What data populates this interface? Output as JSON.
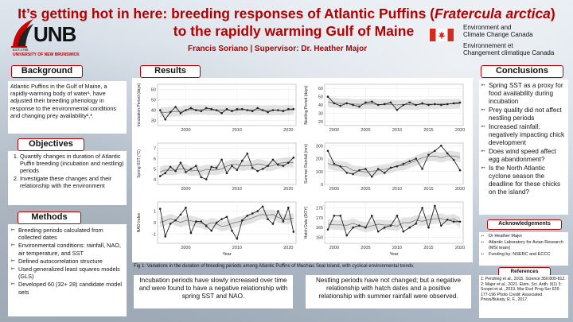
{
  "title": {
    "line1_pre": "It’s getting hot in here: breeding responses of Atlantic Puffins (",
    "line1_italic": "Fratercula arctica",
    "line1_post": ")",
    "line2": "to the rapidly warming Gulf of Maine"
  },
  "authors": "Francis Soriano   |   Supervisor: Dr. Heather Major",
  "logo": {
    "name": "UNB",
    "est": "EST.1785",
    "university": "UNIVERSITY OF NEW BRUNSWICK"
  },
  "eccc": {
    "en1": "Environment and",
    "en2": "Climate Change Canada",
    "fr1": "Environnement et",
    "fr2": "Changement climatique Canada"
  },
  "background": {
    "header": "Background",
    "text": "Atlantic Puffins in the Gulf of Maine, a rapidly-warming body of water¹, have adjusted their breeding phenology in response to the environmental conditions and changing prey availability²,³."
  },
  "objectives": {
    "header": "Objectives",
    "items": [
      "Quantify changes in duration of Atlantic Puffin breeding (incubation and nestling) periods",
      "Investigate these changes and their relationship with the environment"
    ]
  },
  "methods": {
    "header": "Methods",
    "items": [
      "Breeding periods calculated from collected dates",
      "Environmental conditions: rainfall, NAO, air temperature, and SST",
      "Defined autocorrelation structure",
      "Used generalized least squares models (GLS)",
      "Developed 60 (32+ 28) candidate model sets"
    ]
  },
  "results": {
    "header": "Results",
    "caption": "Fig 1: Variations in the duration of breeding periods among Atlantic Puffins of Machias Seal Island, with cyclical environmental trends.",
    "left_summary": "Incubation periods have slowly increased over time and were found to have a negative relationship with spring SST and NAO.",
    "right_summary": "Nestling periods have not changed; but a negative relationship with hatch dates and a positive relationship with summer rainfall were observed."
  },
  "conclusions": {
    "header": "Conclusions",
    "items": [
      "Spring SST as a proxy for food availability during incubation",
      "Prey quality did not affect nestling periods",
      "Increased rainfall: negatively impacting chick development",
      "Does wind speed affect egg abandonment?",
      "Is the North Atlantic cyclone season the deadline for these chicks on the island?"
    ]
  },
  "acknowledgements": {
    "header": "Acknowledgements",
    "items": [
      "Dr Heather Major",
      "Atlantic Laboratory for Avian Research (MSI team)",
      "Funding by: NSERC and ECCC"
    ]
  },
  "references": {
    "header": "References",
    "text": "1: Pershing et al., 2015. Science 350:809-812.  2: Major et al., 2021. Elem. Sci. Anth. 9(1) 3: Scopel et al., 2019. Mar Ecol Prog Ser 626: 177-196 Photo Credit: Associated Press/Bukaty, R. F., 2017."
  },
  "chart_data": [
    {
      "type": "line",
      "ylabel": "Incubation Period (days)",
      "xlabel": "",
      "x_ticks": [
        "2000",
        "2010",
        "2020"
      ],
      "y_ticks": [
        "30",
        "40",
        "50",
        "60"
      ],
      "ylim": [
        25,
        65
      ],
      "x": [
        1995,
        1996,
        1997,
        1998,
        1999,
        2000,
        2001,
        2002,
        2003,
        2004,
        2005,
        2006,
        2007,
        2008,
        2009,
        2010,
        2011,
        2012,
        2013,
        2014,
        2015,
        2016,
        2017,
        2018,
        2019,
        2020,
        2021
      ],
      "values": [
        40,
        31,
        38,
        43,
        37,
        40,
        42,
        40,
        39,
        42,
        41,
        40,
        37,
        41,
        39,
        41,
        41,
        40,
        39,
        42,
        40,
        38,
        40,
        40,
        39,
        41,
        41
      ]
    },
    {
      "type": "line",
      "ylabel": "Nestling Period (days)",
      "xlabel": "",
      "x_ticks": [
        "2000",
        "2005",
        "2010",
        "2015",
        "2020"
      ],
      "y_ticks": [
        "20",
        "30",
        "40",
        "50",
        "60"
      ],
      "ylim": [
        15,
        65
      ],
      "x": [
        1999,
        2000,
        2001,
        2002,
        2003,
        2004,
        2005,
        2006,
        2007,
        2008,
        2009,
        2010,
        2011,
        2012,
        2013,
        2014,
        2015,
        2016,
        2017,
        2018,
        2019,
        2020
      ],
      "values": [
        50,
        42,
        39,
        42,
        40,
        38,
        43,
        44,
        40,
        41,
        43,
        34,
        40,
        43,
        40,
        42,
        40,
        41,
        40,
        41,
        42,
        43
      ]
    },
    {
      "type": "line",
      "ylabel": "Spring SST (°C)",
      "xlabel": "",
      "x_ticks": [
        "2000",
        "2010",
        "2020"
      ],
      "y_ticks": [
        "4",
        "5",
        "6",
        "7"
      ],
      "ylim": [
        3.5,
        7.5
      ],
      "x": [
        1995,
        1996,
        1997,
        1998,
        1999,
        2000,
        2001,
        2002,
        2003,
        2004,
        2005,
        2006,
        2007,
        2008,
        2009,
        2010,
        2011,
        2012,
        2013,
        2014,
        2015,
        2016,
        2017,
        2018,
        2019,
        2020,
        2021
      ],
      "values": [
        4.3,
        4.6,
        5.2,
        4.8,
        5.6,
        4.7,
        5.0,
        5.3,
        4.2,
        4.0,
        5.2,
        5.1,
        5.9,
        4.6,
        5.3,
        4.9,
        5.8,
        6.5,
        5.1,
        4.8,
        5.0,
        5.3,
        5.9,
        5.4,
        5.3,
        5.6,
        6.1
      ]
    },
    {
      "type": "line",
      "ylabel": "Summer Rainfall (mm)",
      "xlabel": "",
      "x_ticks": [
        "2000",
        "2005",
        "2010",
        "2015",
        "2020"
      ],
      "y_ticks": [
        "0",
        "100",
        "200",
        "300"
      ],
      "ylim": [
        0,
        320
      ],
      "x": [
        1999,
        2000,
        2001,
        2002,
        2003,
        2004,
        2005,
        2006,
        2007,
        2008,
        2009,
        2010,
        2011,
        2012,
        2013,
        2014,
        2015,
        2016,
        2017,
        2018,
        2019,
        2020
      ],
      "values": [
        260,
        160,
        140,
        90,
        80,
        110,
        120,
        60,
        120,
        90,
        130,
        140,
        160,
        180,
        200,
        120,
        230,
        260,
        300,
        240,
        190,
        110
      ]
    },
    {
      "type": "line",
      "ylabel": "NAO Index",
      "xlabel": "Year",
      "x_ticks": [
        "2000",
        "2010",
        "2020"
      ],
      "y_ticks": [
        "-1",
        "0",
        "1"
      ],
      "ylim": [
        -1.8,
        1.8
      ],
      "x": [
        1995,
        1996,
        1997,
        1998,
        1999,
        2000,
        2001,
        2002,
        2003,
        2004,
        2005,
        2006,
        2007,
        2008,
        2009,
        2010,
        2011,
        2012,
        2013,
        2014,
        2015,
        2016,
        2017,
        2018,
        2019,
        2020,
        2021
      ],
      "values": [
        1.2,
        -1.2,
        -0.1,
        0.2,
        0.7,
        1.3,
        -0.9,
        0.1,
        0.1,
        -0.3,
        -0.7,
        0.0,
        0.3,
        0.5,
        -0.7,
        -1.4,
        0.2,
        0.6,
        0.8,
        1.0,
        1.4,
        0.3,
        -0.1,
        1.0,
        0.1,
        1.3,
        -0.8
      ]
    },
    {
      "type": "line",
      "ylabel": "Hatch Date (DOY)",
      "xlabel": "Year",
      "x_ticks": [
        "2000",
        "2005",
        "2010",
        "2015",
        "2020"
      ],
      "y_ticks": [
        "160",
        "165",
        "170",
        "175"
      ],
      "ylim": [
        157,
        178
      ],
      "x": [
        1999,
        2000,
        2001,
        2002,
        2003,
        2004,
        2005,
        2006,
        2007,
        2008,
        2009,
        2010,
        2011,
        2012,
        2013,
        2014,
        2015,
        2016,
        2017,
        2018,
        2019,
        2020
      ],
      "values": [
        164,
        171,
        171,
        161,
        165,
        166,
        165,
        171,
        163,
        165,
        166,
        171,
        163,
        165,
        167,
        175,
        165,
        176,
        166,
        169,
        168,
        168
      ]
    }
  ]
}
